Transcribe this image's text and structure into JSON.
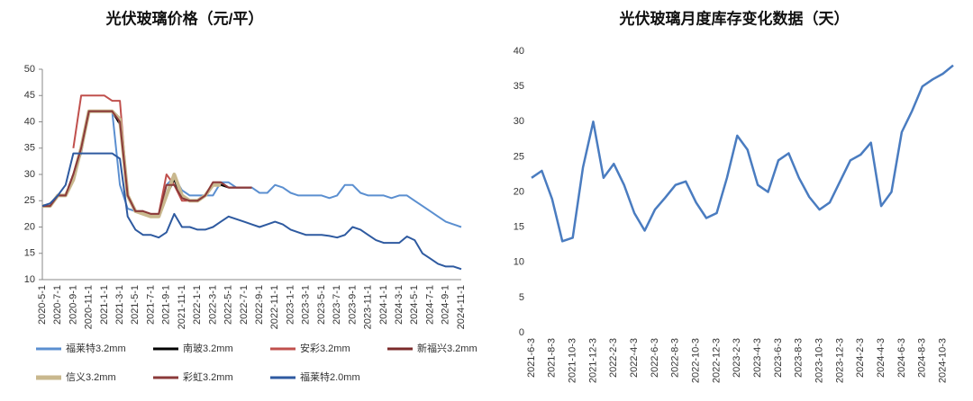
{
  "chart_data": [
    {
      "type": "line",
      "title": "光伏玻璃价格（元/平）",
      "categories": [
        "2020-5-1",
        null,
        "2020-7-1",
        null,
        "2020-9-1",
        null,
        "2020-11-1",
        null,
        "2021-1-1",
        null,
        "2021-3-1",
        null,
        "2021-5-1",
        null,
        "2021-7-1",
        null,
        "2021-9-1",
        null,
        "2021-11-1",
        null,
        "2022-1-1",
        null,
        "2022-3-1",
        null,
        "2022-5-1",
        null,
        "2022-7-1",
        null,
        "2022-9-1",
        null,
        "2022-11-1",
        null,
        "2023-1-1",
        null,
        "2023-3-1",
        null,
        "2023-5-1",
        null,
        "2023-7-1",
        null,
        "2023-9-1",
        null,
        "2023-11-1",
        null,
        "2024-1-1",
        null,
        "2024-3-1",
        null,
        "2024-5-1",
        null,
        "2024-7-1",
        null,
        "2024-9-1",
        null,
        "2024-11-1"
      ],
      "ylim": [
        10,
        50
      ],
      "yticks": [
        10,
        15,
        20,
        25,
        30,
        35,
        40,
        45,
        50
      ],
      "grid": false,
      "legend": "bottom",
      "series": [
        {
          "name": "福莱特3.2mm",
          "color": "#5b8fd0",
          "width": 2,
          "values": [
            24,
            24,
            26,
            26,
            30,
            34,
            42,
            42,
            42,
            42,
            28,
            23.5,
            23,
            23,
            22,
            22,
            28,
            29.5,
            27,
            26,
            26,
            26,
            26,
            28.5,
            28.5,
            27.5,
            27.5,
            27.5,
            26.5,
            26.5,
            28,
            27.5,
            26.5,
            26,
            26,
            26,
            26,
            25.5,
            26,
            28,
            28,
            26.5,
            26,
            26,
            26,
            25.5,
            26,
            26,
            25,
            24,
            23,
            22,
            21,
            20.5,
            20
          ]
        },
        {
          "name": "南玻3.2mm",
          "color": "#000000",
          "width": 2,
          "values": [
            24,
            24,
            26,
            26,
            30,
            34.5,
            42,
            42,
            42,
            42,
            39.5,
            26,
            23,
            23,
            22,
            22,
            26,
            29,
            25.5,
            25,
            25,
            26,
            28,
            28,
            27.5,
            27.5,
            27.5,
            27.5,
            null,
            null,
            null,
            null,
            null,
            null,
            null,
            null,
            null,
            null,
            null,
            null,
            null,
            null,
            null,
            null,
            null,
            null,
            null,
            null,
            null,
            null,
            null,
            null,
            null,
            null,
            null
          ]
        },
        {
          "name": "安彩3.2mm",
          "color": "#c0504d",
          "width": 2,
          "values": [
            null,
            null,
            null,
            null,
            35,
            45,
            45,
            45,
            45,
            44,
            44,
            26,
            23,
            23,
            22.5,
            22.5,
            30,
            28,
            25,
            25,
            25,
            26,
            28.5,
            28.5,
            27.5,
            27.5,
            27.5,
            27.5,
            null,
            null,
            null,
            null,
            null,
            null,
            null,
            null,
            null,
            null,
            null,
            null,
            null,
            null,
            null,
            null,
            null,
            null,
            null,
            null,
            null,
            null,
            null,
            null,
            null,
            null,
            null
          ]
        },
        {
          "name": "新福兴3.2mm",
          "color": "#7b2b2b",
          "width": 2,
          "values": [
            24,
            24,
            26,
            26,
            30,
            35.5,
            null,
            null,
            null,
            null,
            null,
            null,
            null,
            null,
            null,
            null,
            null,
            null,
            null,
            null,
            null,
            null,
            null,
            null,
            null,
            null,
            null,
            null,
            null,
            null,
            null,
            null,
            null,
            null,
            null,
            null,
            null,
            null,
            null,
            null,
            null,
            null,
            null,
            null,
            null,
            null,
            null,
            null,
            null,
            null,
            null,
            null,
            null,
            null,
            null
          ]
        },
        {
          "name": "信义3.2mm",
          "color": "#c9b88e",
          "width": 4,
          "values": [
            24,
            24,
            26,
            26,
            29,
            35,
            42,
            42,
            42,
            42,
            40.5,
            26,
            23,
            22.5,
            22,
            22,
            26,
            30,
            26,
            25,
            25,
            26,
            28,
            28,
            null,
            null,
            null,
            null,
            null,
            null,
            null,
            null,
            null,
            null,
            null,
            null,
            null,
            null,
            null,
            null,
            null,
            null,
            null,
            null,
            null,
            null,
            null,
            null,
            null,
            null,
            null,
            null,
            null,
            null,
            null
          ]
        },
        {
          "name": "彩虹3.2mm",
          "color": "#8b3a3a",
          "width": 2,
          "values": [
            24,
            24,
            26,
            26,
            30,
            35,
            42,
            42,
            42,
            42,
            40,
            26,
            23,
            23,
            22.5,
            22.5,
            28,
            28,
            25.5,
            25,
            25,
            26,
            28.5,
            28.5,
            27.5,
            27.5,
            27.5,
            27.5,
            null,
            null,
            null,
            null,
            null,
            null,
            null,
            null,
            null,
            null,
            null,
            null,
            null,
            null,
            null,
            null,
            null,
            null,
            null,
            null,
            null,
            null,
            null,
            null,
            null,
            null,
            null
          ]
        },
        {
          "name": "福莱特2.0mm",
          "color": "#2e5aa0",
          "width": 2,
          "values": [
            24,
            24.5,
            26,
            28,
            34,
            34,
            34,
            34,
            34,
            34,
            33,
            22,
            19.5,
            18.5,
            18.5,
            18,
            19,
            22.5,
            20,
            20,
            19.5,
            19.5,
            20,
            21,
            22,
            21.5,
            21,
            20.5,
            20,
            20.5,
            21,
            20.5,
            19.5,
            19,
            18.5,
            18.5,
            18.5,
            18.3,
            18,
            18.5,
            20,
            19.5,
            18.5,
            17.5,
            17,
            17,
            17,
            18.2,
            17.5,
            15,
            14,
            13,
            12.5,
            12.5,
            12
          ]
        }
      ]
    },
    {
      "type": "line",
      "title": "光伏玻璃月度库存变化数据（天）",
      "categories": [
        "2021-6-3",
        null,
        "2021-8-3",
        null,
        "2021-10-3",
        null,
        "2021-12-3",
        null,
        "2022-2-3",
        null,
        "2022-4-3",
        null,
        "2022-6-3",
        null,
        "2022-8-3",
        null,
        "2022-10-3",
        null,
        "2022-12-3",
        null,
        "2023-2-3",
        null,
        "2023-4-3",
        null,
        "2023-6-3",
        null,
        "2023-8-3",
        null,
        "2023-10-3",
        null,
        "2023-12-3",
        null,
        "2024-2-3",
        null,
        "2024-4-3",
        null,
        "2024-6-3",
        null,
        "2024-8-3",
        null,
        "2024-10-3",
        null
      ],
      "ylim": [
        0,
        40
      ],
      "yticks": [
        0,
        5,
        10,
        15,
        20,
        25,
        30,
        35,
        40
      ],
      "grid": false,
      "color": "#4a7cc0",
      "values": [
        22,
        23,
        19,
        13,
        13.5,
        23.5,
        30,
        22,
        24,
        21,
        17,
        14.5,
        17.5,
        19.2,
        21,
        21.5,
        18.5,
        16.3,
        17,
        22,
        28,
        26,
        21,
        20,
        24.5,
        25.5,
        22,
        19.3,
        17.5,
        18.5,
        21.5,
        24.5,
        25.3,
        27,
        18,
        20,
        28.5,
        31.5,
        35,
        36,
        36.8,
        38
      ]
    }
  ]
}
